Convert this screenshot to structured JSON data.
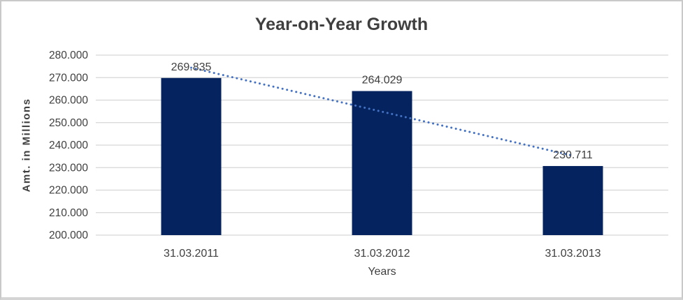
{
  "chart_data": {
    "type": "bar",
    "title": "Year-on-Year Growth",
    "xlabel": "Years",
    "ylabel": "Amt. in Millions",
    "categories": [
      "31.03.2011",
      "31.03.2012",
      "31.03.2013"
    ],
    "values": [
      269.835,
      264.029,
      230.711
    ],
    "data_labels": [
      "269.835",
      "264.029",
      "230.711"
    ],
    "ylim": [
      200,
      280
    ],
    "ytick_step": 10,
    "yticks": [
      {
        "value": 280,
        "label": "280.000"
      },
      {
        "value": 270,
        "label": "270.000"
      },
      {
        "value": 260,
        "label": "260.000"
      },
      {
        "value": 250,
        "label": "250.000"
      },
      {
        "value": 240,
        "label": "240.000"
      },
      {
        "value": 230,
        "label": "230.000"
      },
      {
        "value": 220,
        "label": "220.000"
      },
      {
        "value": 210,
        "label": "210.000"
      },
      {
        "value": 200,
        "label": "200.000"
      }
    ],
    "grid": true,
    "legend": "none",
    "trendline": {
      "type": "linear",
      "style": "dotted",
      "start_value": 274.4,
      "end_value": 235.3
    },
    "colors": {
      "bar": "#04235F",
      "trendline": "#4472C4",
      "gridline": "#D6D6D6",
      "text": "#3F3F3F",
      "frame_border": "#C9C9C9",
      "background": "#FFFFFF"
    }
  }
}
